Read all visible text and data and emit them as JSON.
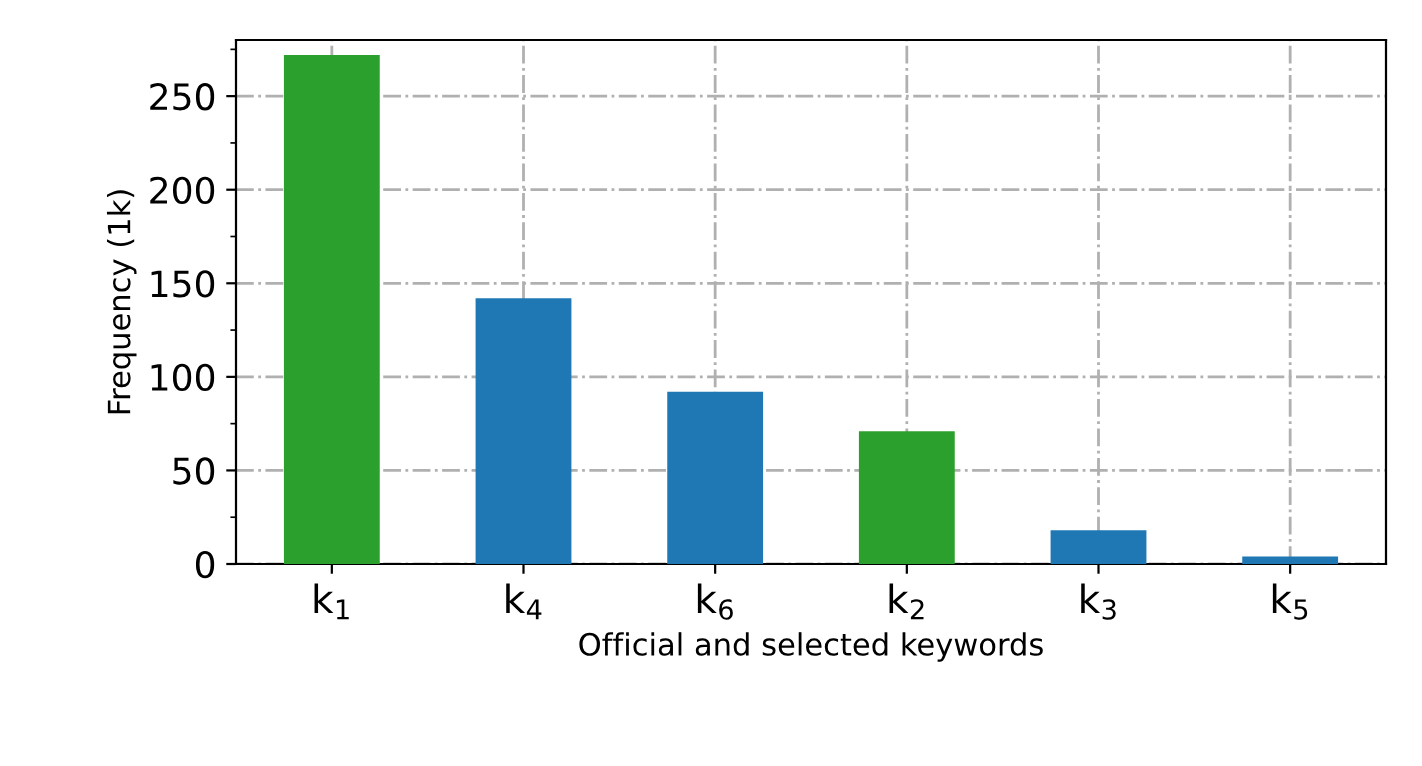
{
  "chart_data": {
    "type": "bar",
    "categories": [
      "k$_{1}$",
      "k$_{4}$",
      "k$_{6}$",
      "k$_{2}$",
      "k$_{3}$",
      "k$_{5}$"
    ],
    "values": [
      272,
      142,
      92,
      71,
      18,
      4
    ],
    "colors": [
      "#2ca02c",
      "#1f77b4",
      "#1f77b4",
      "#2ca02c",
      "#1f77b4",
      "#1f77b4"
    ],
    "xlabel": "Official and selected keywords",
    "ylabel": "Frequency (1k)",
    "ylim": [
      0,
      280
    ],
    "yticks": [
      0,
      50,
      100,
      150,
      200,
      250
    ],
    "grid": true,
    "line_style": "dashdot"
  }
}
